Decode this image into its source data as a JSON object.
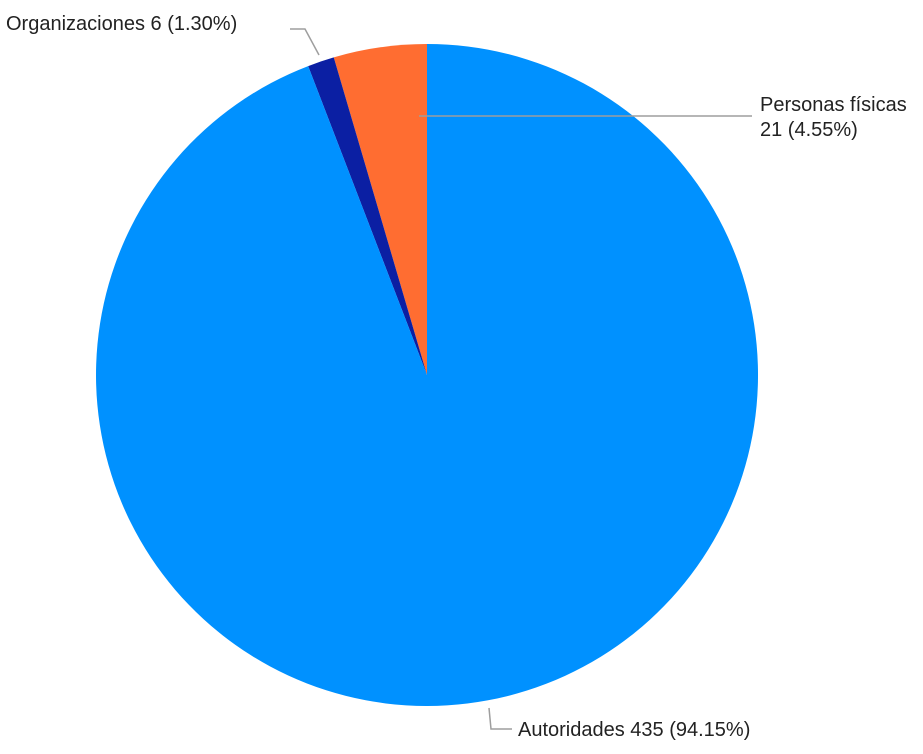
{
  "chart_data": {
    "type": "pie",
    "title": "",
    "start_angle_deg": 0,
    "direction": "counterclockwise",
    "slices": [
      {
        "name": "Personas físicas",
        "value": 21,
        "percent": 4.55,
        "color": "#ff6d31"
      },
      {
        "name": "Organizaciones",
        "value": 6,
        "percent": 1.3,
        "color": "#0b1fa3"
      },
      {
        "name": "Autoridades",
        "value": 435,
        "percent": 94.15,
        "color": "#0091ff"
      }
    ],
    "labels": {
      "personas": {
        "line1": "Personas físicas",
        "line2": "21 (4.55%)"
      },
      "organizaciones": {
        "text": "Organizaciones 6 (1.30%)"
      },
      "autoridades": {
        "text": "Autoridades 435 (94.15%)"
      }
    }
  }
}
